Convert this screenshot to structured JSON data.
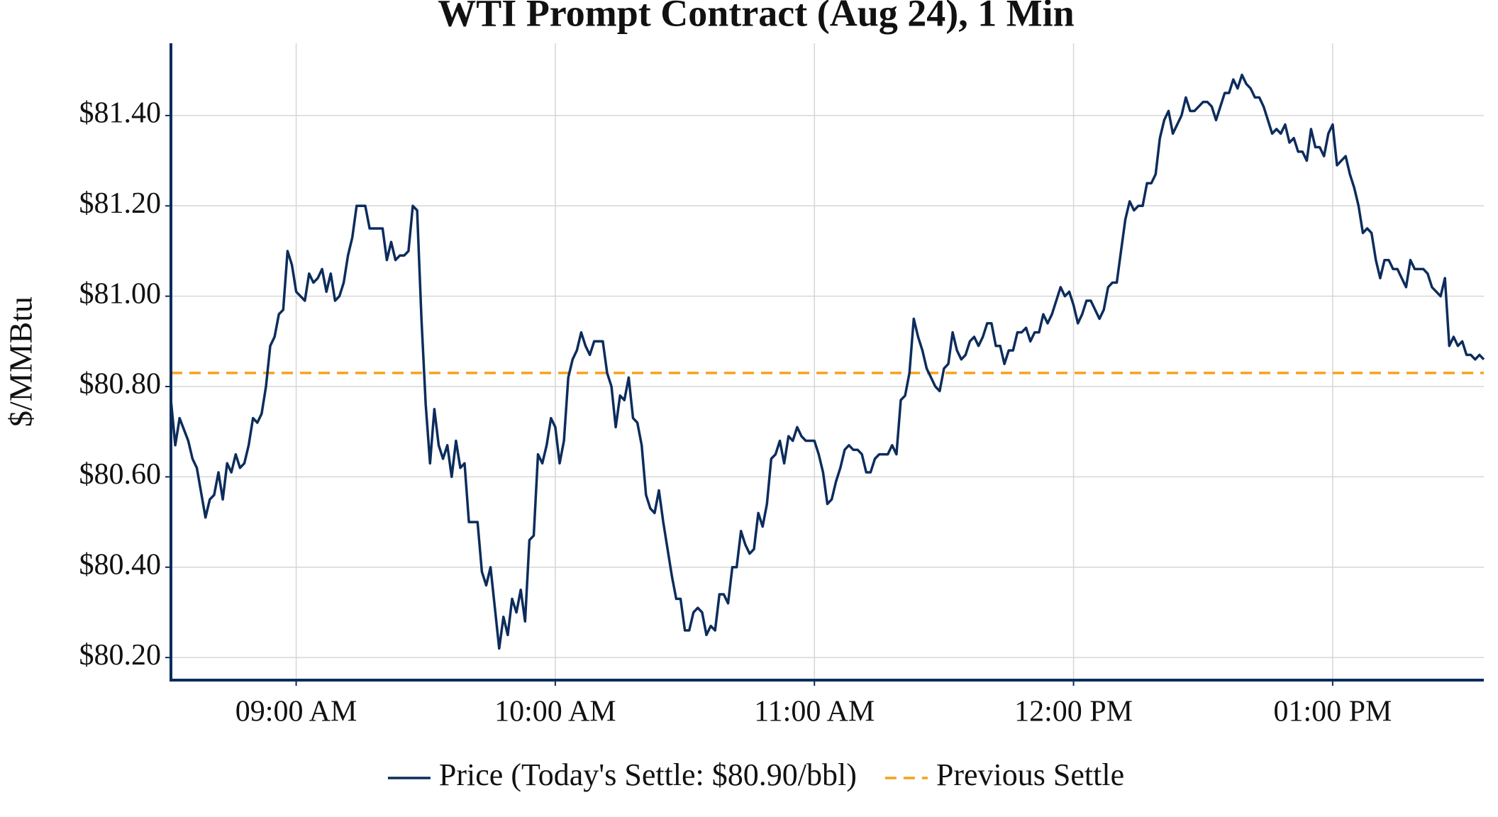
{
  "chart_data": {
    "type": "line",
    "title": "WTI Prompt Contract (Aug 24), 1 Min",
    "y_label": "$/MMBtu",
    "grid": true,
    "legend": "bottom",
    "xlim": [
      "08:31",
      "13:35"
    ],
    "xticks": [
      {
        "value": "09:00",
        "label": "09:00 AM"
      },
      {
        "value": "10:00",
        "label": "10:00 AM"
      },
      {
        "value": "11:00",
        "label": "11:00 AM"
      },
      {
        "value": "12:00",
        "label": "12:00 PM"
      },
      {
        "value": "13:00",
        "label": "01:00 PM"
      }
    ],
    "ylim": [
      80.15,
      81.56
    ],
    "yticks": [
      {
        "value": 80.2,
        "label": "$80.20"
      },
      {
        "value": 80.4,
        "label": "$80.40"
      },
      {
        "value": 80.6,
        "label": "$80.60"
      },
      {
        "value": 80.8,
        "label": "$80.80"
      },
      {
        "value": 81.0,
        "label": "$81.00"
      },
      {
        "value": 81.2,
        "label": "$81.20"
      },
      {
        "value": 81.4,
        "label": "$81.40"
      }
    ],
    "reference_line": {
      "name": "Previous Settle",
      "value": 80.83,
      "color": "#f5a21b"
    },
    "x": [
      "08:31",
      "08:32",
      "08:33",
      "08:35",
      "08:36",
      "08:37",
      "08:39",
      "08:40",
      "08:41",
      "08:42",
      "08:43",
      "08:44",
      "08:45",
      "08:46",
      "08:47",
      "08:48",
      "08:49",
      "08:50",
      "08:51",
      "08:52",
      "08:53",
      "08:54",
      "08:55",
      "08:56",
      "08:57",
      "08:58",
      "08:59",
      "09:00",
      "09:01",
      "09:02",
      "09:03",
      "09:04",
      "09:05",
      "09:06",
      "09:07",
      "09:08",
      "09:09",
      "09:10",
      "09:11",
      "09:12",
      "09:13",
      "09:14",
      "09:15",
      "09:16",
      "09:17",
      "09:18",
      "09:20",
      "09:21",
      "09:22",
      "09:23",
      "09:24",
      "09:25",
      "09:26",
      "09:27",
      "09:28",
      "09:29",
      "09:30",
      "09:31",
      "09:32",
      "09:33",
      "09:34",
      "09:35",
      "09:36",
      "09:37",
      "09:38",
      "09:39",
      "09:40",
      "09:41",
      "09:42",
      "09:43",
      "09:44",
      "09:45",
      "09:46",
      "09:47",
      "09:48",
      "09:49",
      "09:50",
      "09:51",
      "09:52",
      "09:53",
      "09:54",
      "09:55",
      "09:56",
      "09:57",
      "09:58",
      "09:59",
      "10:00",
      "10:01",
      "10:02",
      "10:03",
      "10:04",
      "10:05",
      "10:06",
      "10:07",
      "10:08",
      "10:09",
      "10:10",
      "10:11",
      "10:12",
      "10:13",
      "10:14",
      "10:15",
      "10:16",
      "10:17",
      "10:18",
      "10:19",
      "10:20",
      "10:21",
      "10:22",
      "10:23",
      "10:24",
      "10:25",
      "10:26",
      "10:27",
      "10:28",
      "10:29",
      "10:30",
      "10:31",
      "10:32",
      "10:33",
      "10:34",
      "10:35",
      "10:36",
      "10:37",
      "10:38",
      "10:39",
      "10:40",
      "10:41",
      "10:42",
      "10:43",
      "10:44",
      "10:45",
      "10:46",
      "10:47",
      "10:48",
      "10:49",
      "10:50",
      "10:51",
      "10:52",
      "10:53",
      "10:54",
      "10:55",
      "10:56",
      "10:57",
      "10:58",
      "11:00",
      "11:01",
      "11:02",
      "11:03",
      "11:04",
      "11:05",
      "11:06",
      "11:07",
      "11:08",
      "11:09",
      "11:10",
      "11:11",
      "11:12",
      "11:13",
      "11:14",
      "11:15",
      "11:16",
      "11:17",
      "11:18",
      "11:19",
      "11:20",
      "11:21",
      "11:22",
      "11:23",
      "11:24",
      "11:25",
      "11:26",
      "11:27",
      "11:28",
      "11:29",
      "11:30",
      "11:31",
      "11:32",
      "11:33",
      "11:34",
      "11:35",
      "11:36",
      "11:37",
      "11:38",
      "11:39",
      "11:40",
      "11:41",
      "11:42",
      "11:43",
      "11:44",
      "11:45",
      "11:46",
      "11:47",
      "11:48",
      "11:49",
      "11:50",
      "11:51",
      "11:52",
      "11:53",
      "11:54",
      "11:55",
      "11:56",
      "11:57",
      "11:58",
      "11:59",
      "12:00",
      "12:01",
      "12:02",
      "12:03",
      "12:04",
      "12:05",
      "12:06",
      "12:07",
      "12:08",
      "12:09",
      "12:10",
      "12:11",
      "12:12",
      "12:13",
      "12:14",
      "12:15",
      "12:16",
      "12:17",
      "12:18",
      "12:19",
      "12:20",
      "12:21",
      "12:22",
      "12:23",
      "12:24",
      "12:25",
      "12:26",
      "12:27",
      "12:28",
      "12:29",
      "12:30",
      "12:31",
      "12:32",
      "12:33",
      "12:34",
      "12:35",
      "12:36",
      "12:37",
      "12:38",
      "12:39",
      "12:40",
      "12:41",
      "12:42",
      "12:43",
      "12:44",
      "12:45",
      "12:46",
      "12:47",
      "12:48",
      "12:49",
      "12:50",
      "12:51",
      "12:52",
      "12:53",
      "12:54",
      "12:55",
      "12:56",
      "12:57",
      "12:58",
      "12:59",
      "13:00",
      "13:01",
      "13:02",
      "13:03",
      "13:04",
      "13:05",
      "13:06",
      "13:07",
      "13:08",
      "13:09",
      "13:10",
      "13:11",
      "13:12",
      "13:13",
      "13:14",
      "13:15",
      "13:16",
      "13:17",
      "13:18",
      "13:19",
      "13:20",
      "13:21",
      "13:22",
      "13:23",
      "13:24",
      "13:25",
      "13:26",
      "13:27",
      "13:28",
      "13:29",
      "13:30",
      "13:31",
      "13:32",
      "13:33",
      "13:34",
      "13:35"
    ],
    "series": [
      {
        "name": "Price (Today's Settle: $80.90/bbl)",
        "color": "#0c2c5c",
        "values": [
          80.77,
          80.67,
          80.73,
          80.68,
          80.64,
          80.62,
          80.51,
          80.55,
          80.56,
          80.61,
          80.55,
          80.63,
          80.61,
          80.65,
          80.62,
          80.63,
          80.67,
          80.73,
          80.72,
          80.74,
          80.8,
          80.89,
          80.91,
          80.96,
          80.97,
          81.1,
          81.07,
          81.01,
          81.0,
          80.99,
          81.05,
          81.03,
          81.04,
          81.06,
          81.01,
          81.05,
          80.99,
          81.0,
          81.03,
          81.09,
          81.13,
          81.2,
          81.2,
          81.2,
          81.15,
          81.15,
          81.15,
          81.08,
          81.12,
          81.08,
          81.09,
          81.09,
          81.1,
          81.2,
          81.19,
          80.95,
          80.76,
          80.63,
          80.75,
          80.67,
          80.64,
          80.67,
          80.6,
          80.68,
          80.62,
          80.63,
          80.5,
          80.5,
          80.5,
          80.39,
          80.36,
          80.4,
          80.31,
          80.22,
          80.29,
          80.25,
          80.33,
          80.3,
          80.35,
          80.28,
          80.46,
          80.47,
          80.65,
          80.63,
          80.67,
          80.73,
          80.71,
          80.63,
          80.68,
          80.82,
          80.86,
          80.88,
          80.92,
          80.89,
          80.87,
          80.9,
          80.9,
          80.9,
          80.83,
          80.8,
          80.71,
          80.78,
          80.77,
          80.82,
          80.73,
          80.72,
          80.67,
          80.56,
          80.53,
          80.52,
          80.57,
          80.5,
          80.44,
          80.38,
          80.33,
          80.33,
          80.26,
          80.26,
          80.3,
          80.31,
          80.3,
          80.25,
          80.27,
          80.26,
          80.34,
          80.34,
          80.32,
          80.4,
          80.4,
          80.48,
          80.45,
          80.43,
          80.44,
          80.52,
          80.49,
          80.54,
          80.64,
          80.65,
          80.68,
          80.63,
          80.69,
          80.68,
          80.71,
          80.69,
          80.68,
          80.68,
          80.65,
          80.61,
          80.54,
          80.55,
          80.59,
          80.62,
          80.66,
          80.67,
          80.66,
          80.66,
          80.65,
          80.61,
          80.61,
          80.64,
          80.65,
          80.65,
          80.65,
          80.67,
          80.65,
          80.77,
          80.78,
          80.83,
          80.95,
          80.91,
          80.88,
          80.84,
          80.82,
          80.8,
          80.79,
          80.84,
          80.85,
          80.92,
          80.88,
          80.86,
          80.87,
          80.9,
          80.91,
          80.89,
          80.91,
          80.94,
          80.94,
          80.89,
          80.89,
          80.85,
          80.88,
          80.88,
          80.92,
          80.92,
          80.93,
          80.9,
          80.92,
          80.92,
          80.96,
          80.94,
          80.96,
          80.99,
          81.02,
          81.0,
          81.01,
          80.98,
          80.94,
          80.96,
          80.99,
          80.99,
          80.97,
          80.95,
          80.97,
          81.02,
          81.03,
          81.03,
          81.1,
          81.17,
          81.21,
          81.19,
          81.2,
          81.2,
          81.25,
          81.25,
          81.27,
          81.35,
          81.39,
          81.41,
          81.36,
          81.38,
          81.4,
          81.44,
          81.41,
          81.41,
          81.42,
          81.43,
          81.43,
          81.42,
          81.39,
          81.42,
          81.45,
          81.45,
          81.48,
          81.46,
          81.49,
          81.47,
          81.46,
          81.44,
          81.44,
          81.42,
          81.39,
          81.36,
          81.37,
          81.36,
          81.38,
          81.34,
          81.35,
          81.32,
          81.32,
          81.3,
          81.37,
          81.33,
          81.33,
          81.31,
          81.36,
          81.38,
          81.29,
          81.3,
          81.31,
          81.27,
          81.24,
          81.2,
          81.14,
          81.15,
          81.14,
          81.08,
          81.04,
          81.08,
          81.08,
          81.06,
          81.06,
          81.04,
          81.02,
          81.08,
          81.06,
          81.06,
          81.06,
          81.05,
          81.02,
          81.01,
          81.0,
          81.04,
          80.89,
          80.91,
          80.89,
          80.9,
          80.87,
          80.87,
          80.86,
          80.87,
          80.86
        ]
      }
    ]
  }
}
